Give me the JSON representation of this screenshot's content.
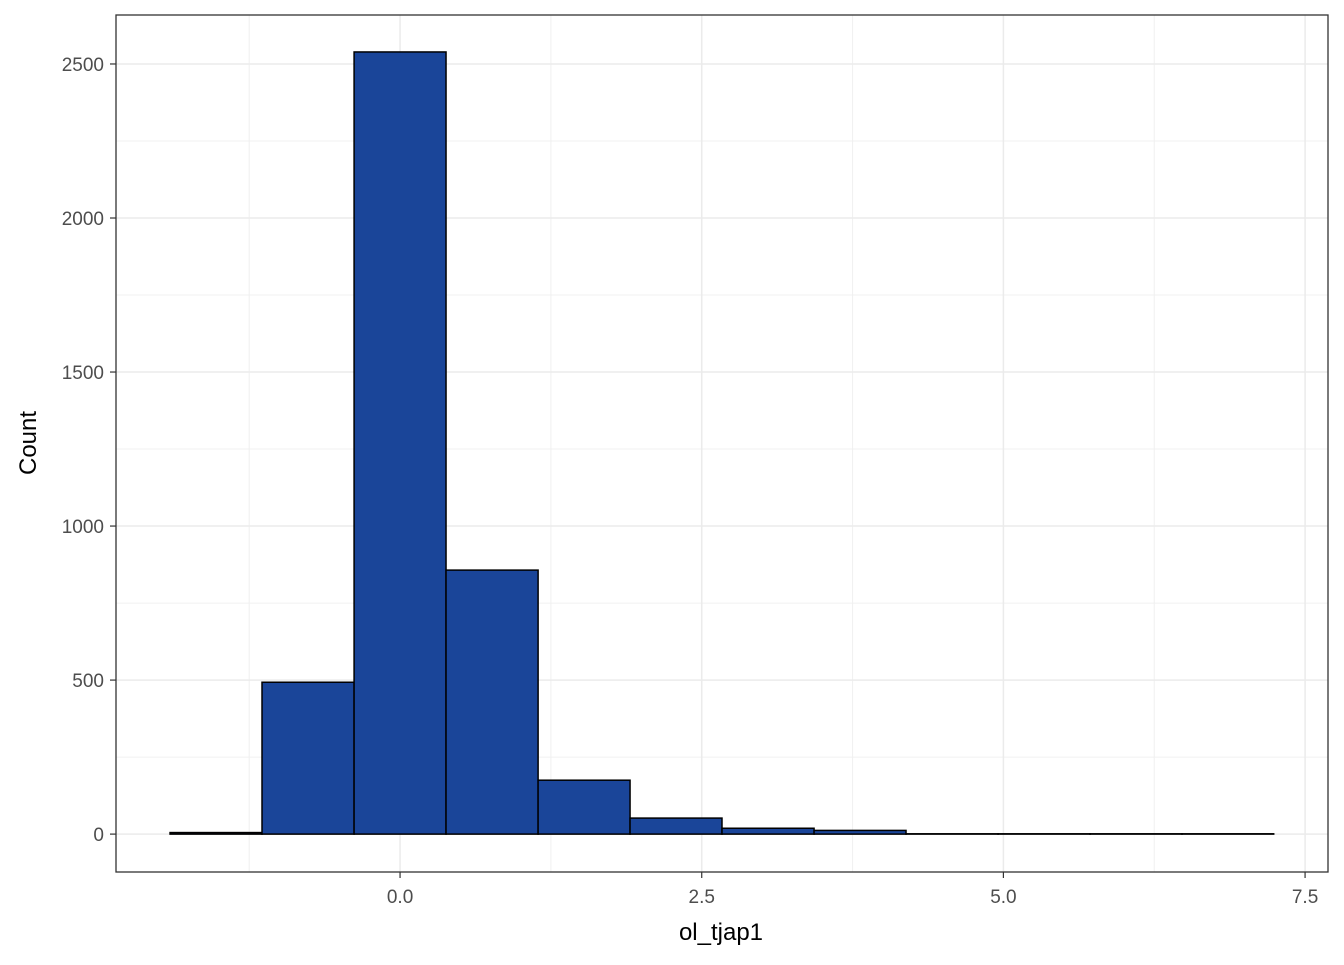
{
  "chart_data": {
    "type": "histogram",
    "x_label": "ol_tjap1",
    "y_label": "Count",
    "bins": [
      -1.906,
      -1.144,
      -0.381,
      0.381,
      1.144,
      1.906,
      2.668,
      3.431,
      4.193,
      4.956,
      5.718,
      6.48,
      7.24
    ],
    "counts": [
      5,
      493,
      2539,
      857,
      175,
      52,
      19,
      12,
      1,
      1,
      1,
      1
    ],
    "color": "#1a4599",
    "xlim": [
      -2.354,
      7.69
    ],
    "ylim": [
      -123,
      2659
    ],
    "xticks": [
      {
        "value": 0,
        "label": "0.0"
      },
      {
        "value": 2.5,
        "label": "2.5"
      },
      {
        "value": 5,
        "label": "5.0"
      },
      {
        "value": 7.5,
        "label": "7.5"
      }
    ],
    "yticks": [
      0,
      500,
      1000,
      1500,
      2000,
      2500
    ],
    "grid": true,
    "minor_grid": true
  }
}
